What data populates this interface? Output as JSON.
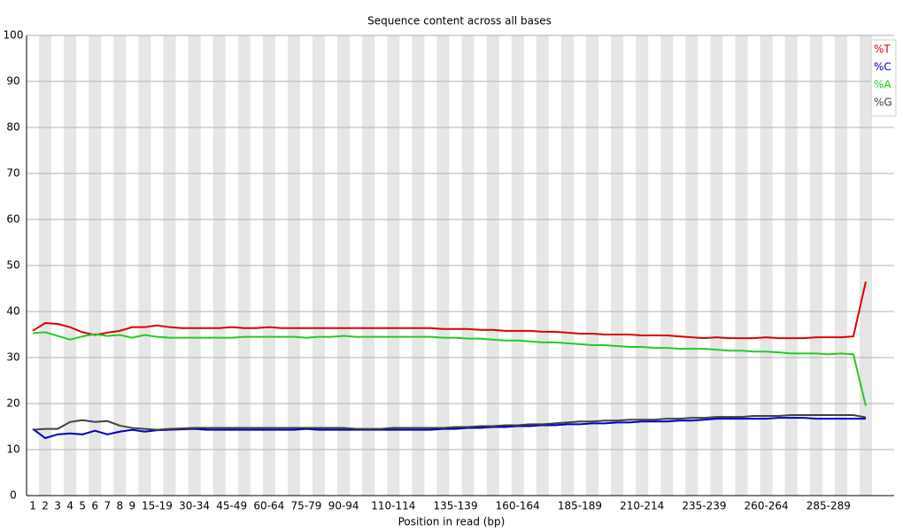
{
  "chart_data": {
    "type": "line",
    "title": "Sequence content across all bases",
    "x_label": "Position in read (bp)",
    "categories": [
      "1",
      "2",
      "3",
      "4",
      "5",
      "6",
      "7",
      "8",
      "9",
      null,
      "15-19",
      null,
      null,
      "30-34",
      null,
      null,
      "45-49",
      null,
      null,
      "60-64",
      null,
      null,
      "75-79",
      null,
      null,
      "90-94",
      null,
      null,
      null,
      "110-114",
      null,
      null,
      null,
      null,
      "135-139",
      null,
      null,
      null,
      null,
      "160-164",
      null,
      null,
      null,
      null,
      "185-189",
      null,
      null,
      null,
      null,
      "210-214",
      null,
      null,
      null,
      null,
      "235-239",
      null,
      null,
      null,
      null,
      "260-264",
      null,
      null,
      null,
      null,
      "285-289",
      null,
      null,
      null
    ],
    "series": [
      {
        "name": "%T",
        "color": "#dd0000",
        "values": [
          35.8,
          37.5,
          37.3,
          36.6,
          35.5,
          34.9,
          35.4,
          35.8,
          36.6,
          36.6,
          37.0,
          36.6,
          36.4,
          36.4,
          36.4,
          36.4,
          36.6,
          36.4,
          36.4,
          36.6,
          36.4,
          36.4,
          36.4,
          36.4,
          36.4,
          36.4,
          36.4,
          36.4,
          36.4,
          36.4,
          36.4,
          36.4,
          36.4,
          36.2,
          36.2,
          36.2,
          36.0,
          36.0,
          35.8,
          35.8,
          35.8,
          35.6,
          35.6,
          35.4,
          35.2,
          35.2,
          35.0,
          35.0,
          35.0,
          34.8,
          34.8,
          34.8,
          34.6,
          34.4,
          34.2,
          34.4,
          34.2,
          34.2,
          34.2,
          34.4,
          34.2,
          34.2,
          34.2,
          34.4,
          34.4,
          34.4,
          34.6,
          46.5
        ]
      },
      {
        "name": "%C",
        "color": "#0000c0",
        "values": [
          14.5,
          12.5,
          13.3,
          13.5,
          13.3,
          14.1,
          13.3,
          13.9,
          14.3,
          13.9,
          14.2,
          14.3,
          14.4,
          14.5,
          14.3,
          14.3,
          14.3,
          14.3,
          14.3,
          14.3,
          14.3,
          14.3,
          14.5,
          14.3,
          14.3,
          14.3,
          14.3,
          14.3,
          14.3,
          14.3,
          14.3,
          14.3,
          14.3,
          14.5,
          14.5,
          14.7,
          14.7,
          14.9,
          14.9,
          15.1,
          15.1,
          15.3,
          15.3,
          15.5,
          15.5,
          15.7,
          15.7,
          15.9,
          15.9,
          16.1,
          16.1,
          16.1,
          16.3,
          16.3,
          16.5,
          16.7,
          16.7,
          16.7,
          16.7,
          16.7,
          16.9,
          16.9,
          16.9,
          16.7,
          16.7,
          16.7,
          16.7,
          16.7
        ]
      },
      {
        "name": "%A",
        "color": "#22cc22",
        "values": [
          35.3,
          35.5,
          34.7,
          33.9,
          34.6,
          35.1,
          34.7,
          34.9,
          34.3,
          34.9,
          34.5,
          34.3,
          34.3,
          34.3,
          34.3,
          34.3,
          34.3,
          34.5,
          34.5,
          34.5,
          34.5,
          34.5,
          34.3,
          34.5,
          34.5,
          34.7,
          34.5,
          34.5,
          34.5,
          34.5,
          34.5,
          34.5,
          34.5,
          34.3,
          34.3,
          34.1,
          34.1,
          33.9,
          33.7,
          33.7,
          33.5,
          33.3,
          33.3,
          33.1,
          32.9,
          32.7,
          32.7,
          32.5,
          32.3,
          32.3,
          32.1,
          32.1,
          31.9,
          31.9,
          31.9,
          31.7,
          31.5,
          31.5,
          31.3,
          31.3,
          31.1,
          30.9,
          30.9,
          30.9,
          30.7,
          30.9,
          30.7,
          19.5
        ]
      },
      {
        "name": "%G",
        "color": "#404040",
        "values": [
          14.3,
          14.5,
          14.5,
          16.0,
          16.4,
          16.0,
          16.2,
          15.2,
          14.7,
          14.5,
          14.3,
          14.5,
          14.6,
          14.7,
          14.7,
          14.7,
          14.7,
          14.7,
          14.7,
          14.7,
          14.7,
          14.7,
          14.7,
          14.7,
          14.7,
          14.7,
          14.5,
          14.5,
          14.5,
          14.7,
          14.7,
          14.7,
          14.7,
          14.7,
          14.9,
          14.9,
          15.1,
          15.1,
          15.3,
          15.3,
          15.5,
          15.5,
          15.7,
          15.9,
          16.1,
          16.1,
          16.3,
          16.3,
          16.5,
          16.5,
          16.5,
          16.7,
          16.7,
          16.9,
          16.9,
          17.1,
          17.1,
          17.1,
          17.3,
          17.3,
          17.3,
          17.5,
          17.5,
          17.5,
          17.5,
          17.5,
          17.5,
          17.0
        ]
      }
    ],
    "ylim": [
      0,
      100
    ],
    "yticks": [
      0,
      10,
      20,
      30,
      40,
      50,
      60,
      70,
      80,
      90,
      100
    ],
    "grid": true,
    "legend": "top-right"
  }
}
